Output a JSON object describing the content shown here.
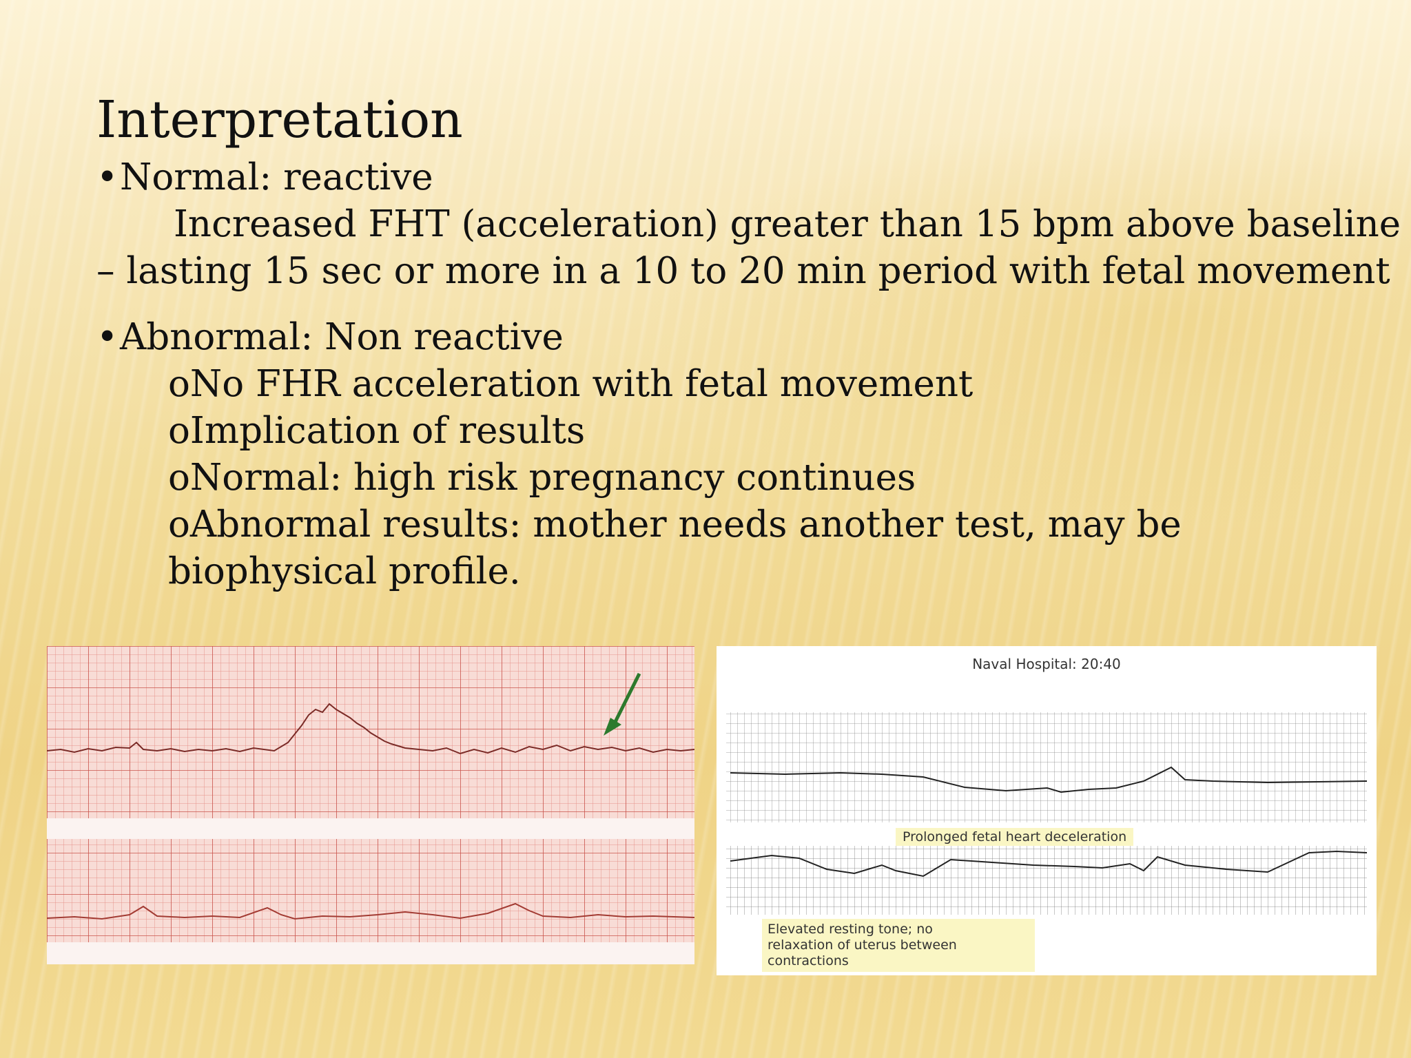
{
  "slide": {
    "title": "Interpretation",
    "normal_heading": "Normal: reactive",
    "normal_line1": "Increased FHT (acceleration) greater than 15 bpm above baseline",
    "normal_line2": "– lasting 15 sec or more in a 10 to 20 min period with fetal movement",
    "abnormal_heading": "Abnormal: Non reactive",
    "sub_items": [
      "No FHR acceleration with fetal movement",
      "Implication of results",
      "Normal: high risk pregnancy continues",
      "Abnormal results: mother needs another test, may be"
    ],
    "sub_item_continuation": "biophysical profile.",
    "bullet_glyph": "•",
    "sub_glyph": "o"
  },
  "figure_right": {
    "title": "Naval Hospital: 20:40",
    "mid_caption": "Prolonged fetal heart deceleration",
    "bottom_caption_lines": [
      "Elevated resting tone; no",
      "relaxation of uterus between",
      "contractions"
    ]
  },
  "colors": {
    "background": "#f6e4aa",
    "grid_red": "#d9625a",
    "grid_gray": "#444444",
    "arrow_green": "#2d7a2d"
  }
}
